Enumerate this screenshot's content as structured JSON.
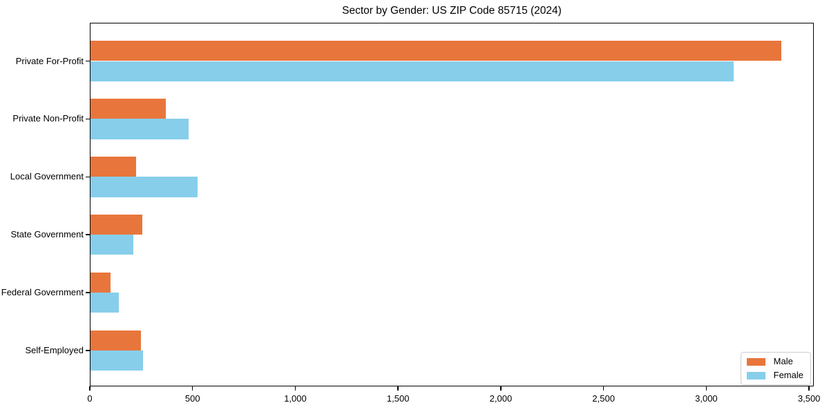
{
  "chart_data": {
    "type": "bar",
    "orientation": "horizontal",
    "title": "Sector by Gender: US ZIP Code 85715 (2024)",
    "categories": [
      "Private For-Profit",
      "Private Non-Profit",
      "Local Government",
      "State Government",
      "Federal Government",
      "Self-Employed"
    ],
    "series": [
      {
        "name": "Male",
        "color": "#E8763C",
        "values": [
          3360,
          365,
          223,
          251,
          98,
          244
        ]
      },
      {
        "name": "Female",
        "color": "#87CEEB",
        "values": [
          3130,
          478,
          522,
          208,
          139,
          254
        ]
      }
    ],
    "xlabel": "",
    "ylabel": "",
    "xlim": [
      0,
      3523
    ],
    "xticks": [
      0,
      500,
      1000,
      1500,
      2000,
      2500,
      3000,
      3500
    ],
    "xtick_labels": [
      "0",
      "500",
      "1,000",
      "1,500",
      "2,000",
      "2,500",
      "3,000",
      "3,500"
    ],
    "grid": false,
    "legend": {
      "position": "lower right",
      "entries": [
        "Male",
        "Female"
      ]
    },
    "axis_color": "#000000",
    "legend_border_color": "#cccccc",
    "background_color": "#ffffff"
  }
}
